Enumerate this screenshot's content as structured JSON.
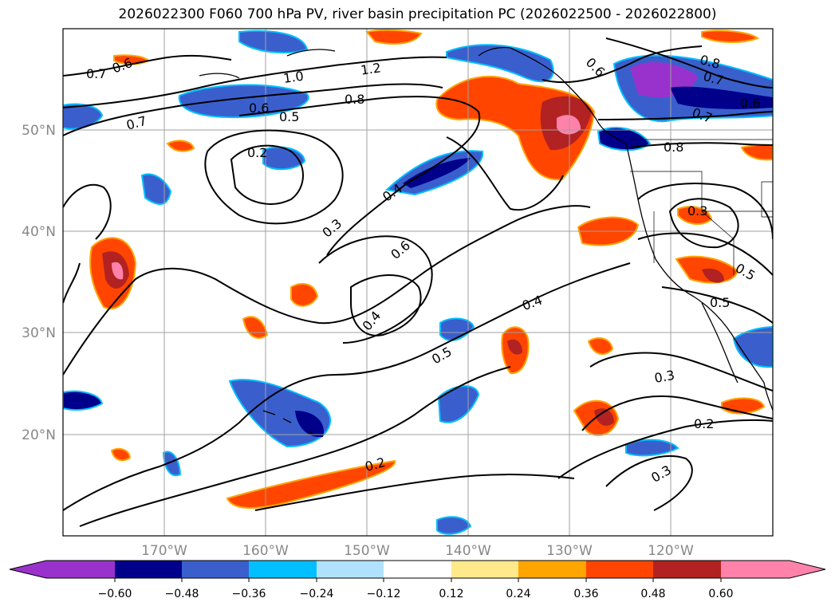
{
  "title": "2026022300 F060 700 hPa PV, river basin precipitation PC (2026022500 - 2026022800)",
  "map": {
    "lon_labels": [
      "170°W",
      "160°W",
      "150°W",
      "140°W",
      "130°W",
      "120°W"
    ],
    "lat_labels": [
      "50°N",
      "40°N",
      "30°N",
      "20°N"
    ],
    "grid_color": "#a0a0a0",
    "label_color": "#888888"
  },
  "contour_labels": [
    "0.6",
    "0.7",
    "1.2",
    "1.0",
    "0.8",
    "0.6",
    "0.5",
    "0.7",
    "0.2",
    "0.4",
    "0.3",
    "0.6",
    "0.4",
    "0.4",
    "0.5",
    "0.3",
    "0.2",
    "0.2",
    "0.3",
    "0.6",
    "0.8",
    "0.7",
    "0.6",
    "0.7",
    "0.8",
    "0.3",
    "0.5",
    "0.5"
  ],
  "colorbar": {
    "ticks": [
      "−0.60",
      "−0.48",
      "−0.36",
      "−0.24",
      "−0.12",
      "0.12",
      "0.24",
      "0.36",
      "0.48",
      "0.60"
    ],
    "colors": [
      "#9932cc",
      "#00008b",
      "#3a5fcd",
      "#00bfff",
      "#b0e2ff",
      "#ffffff",
      "#ffe98a",
      "#ffa500",
      "#ff4500",
      "#b22222",
      "#ff82ab"
    ]
  }
}
